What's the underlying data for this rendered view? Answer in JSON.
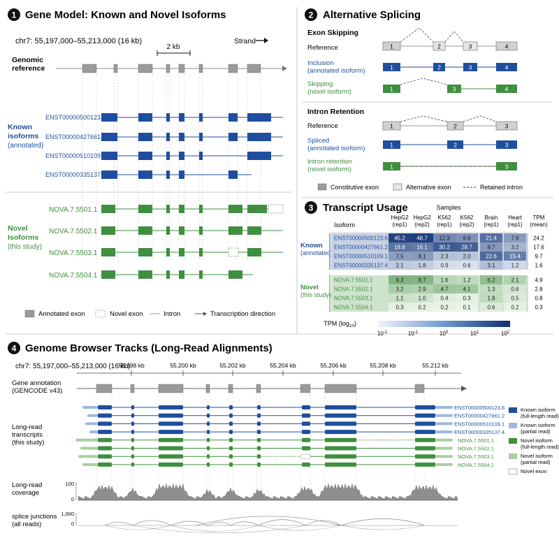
{
  "panel1": {
    "number": "1",
    "title": "Gene Model: Known and Novel Isoforms",
    "coords": "chr7: 55,197,000–55,213,000 (16 kb)",
    "strand_label": "Strand",
    "scale_label": "2 kb",
    "genomic_ref_line1": "Genomic",
    "genomic_ref_line2": "reference",
    "known_group": [
      "Known",
      "isoforms",
      "(annotated)"
    ],
    "novel_group": [
      "Novel",
      "Isoforms",
      "(this study)"
    ],
    "known_isoforms": [
      "ENST00000500123.6",
      "ENST00000427661.2",
      "ENST00000510109.1",
      "ENST00000335137.4"
    ],
    "novel_isoforms": [
      "NOVA.7.5501.1",
      "NOVA.7.5502.1",
      "NOVA.7.5503.1",
      "NOVA.7.5504.1"
    ],
    "legend": {
      "annotated_exon": "Annotated exon",
      "novel_exon": "Novel exon",
      "intron": "Intron",
      "direction": "Transcription direction"
    }
  },
  "panel2": {
    "number": "2",
    "title": "Alternative Splicing",
    "exon_skipping_heading": "Exon Skipping",
    "intron_retention_heading": "Intron Retention",
    "reference": "Reference",
    "inclusion_line1": "Inclusion",
    "inclusion_line2": "(annotated isoform)",
    "skipping_line1": "Skipping",
    "skipping_line2": "(novel isoform)",
    "spliced_line1": "Spliced",
    "spliced_line2": "(annotated isoform)",
    "retention_line1": "Intron retention",
    "retention_line2": "(novel isoform)",
    "exon_numbers_skip": [
      "1",
      "2",
      "3",
      "4"
    ],
    "exon_numbers_ret": [
      "1",
      "2",
      "3"
    ],
    "legend": {
      "constitutive": "Constitutive exon",
      "alternative": "Alternative exon",
      "retained": "Retained intron"
    }
  },
  "panel3": {
    "number": "3",
    "title": "Transcript Usage",
    "samples_label": "Samples",
    "isoform_header": "Isoform",
    "columns": [
      [
        "HepG2",
        "(rep1)"
      ],
      [
        "HepG2",
        "(rep2)"
      ],
      [
        "K562",
        "(rep1)"
      ],
      [
        "K562",
        "(rep2)"
      ],
      [
        "Brain",
        "(rep1)"
      ],
      [
        "Heart",
        "(rep1)"
      ],
      [
        "TPM",
        "(mean)"
      ]
    ],
    "known_label": [
      "Known",
      "(annotated)"
    ],
    "novel_label": [
      "Novel",
      "(this study)"
    ],
    "known_rows": [
      {
        "name": "ENST00000500123.6",
        "values": [
          "45.2",
          "48.7",
          "12.3",
          "9.8",
          "21.4",
          "7.6"
        ],
        "mean": "24.2",
        "levels": [
          0.9,
          0.92,
          0.55,
          0.5,
          0.68,
          0.45
        ]
      },
      {
        "name": "ENST00000427661.2",
        "values": [
          "18.6",
          "16.1",
          "30.2",
          "28.7",
          "8.7",
          "3.2"
        ],
        "mean": "17.6",
        "levels": [
          0.65,
          0.62,
          0.78,
          0.76,
          0.47,
          0.32
        ]
      },
      {
        "name": "ENST00000510109.1",
        "values": [
          "7.5",
          "8.1",
          "2.3",
          "2.0",
          "22.6",
          "15.4"
        ],
        "mean": "9.7",
        "levels": [
          0.44,
          0.46,
          0.26,
          0.24,
          0.7,
          0.6
        ]
      },
      {
        "name": "ENST00000335137.4",
        "values": [
          "2.1",
          "1.8",
          "0.9",
          "0.6",
          "3.1",
          "1.2"
        ],
        "mean": "1.6",
        "levels": [
          0.22,
          0.2,
          0.12,
          0.1,
          0.28,
          0.14
        ]
      }
    ],
    "novel_rows": [
      {
        "name": "NOVA.7.5501.1",
        "values": [
          "9.3",
          "8.7",
          "1.6",
          "1.2",
          "6.2",
          "2.1"
        ],
        "mean": "4.9",
        "levels": [
          0.62,
          0.6,
          0.3,
          0.26,
          0.52,
          0.34
        ]
      },
      {
        "name": "NOVA.7.5502.1",
        "values": [
          "3.2",
          "2.9",
          "4.7",
          "4.1",
          "1.3",
          "0.6"
        ],
        "mean": "2.8",
        "levels": [
          0.38,
          0.36,
          0.46,
          0.43,
          0.24,
          0.14
        ]
      },
      {
        "name": "NOVA.7.5503.1",
        "values": [
          "1.1",
          "1.0",
          "0.4",
          "0.3",
          "1.8",
          "0.5"
        ],
        "mean": "0.8",
        "levels": [
          0.2,
          0.18,
          0.08,
          0.06,
          0.26,
          0.1
        ]
      },
      {
        "name": "NOVA.7.5504.1",
        "values": [
          "0.3",
          "0.2",
          "0.2",
          "0.1",
          "0.6",
          "0.2"
        ],
        "mean": "0.3",
        "levels": [
          0.06,
          0.04,
          0.04,
          0.02,
          0.1,
          0.04
        ]
      }
    ],
    "colorbar_title": "TPM (log",
    "colorbar_title_sub": "10",
    "colorbar_title_end": ")",
    "colorbar_ticks": [
      "10",
      "10",
      "10",
      "10",
      "10"
    ],
    "colorbar_exps": [
      "-2",
      "-1",
      "0",
      "1",
      "2"
    ],
    "colors": {
      "known": "#1f4e9e",
      "novel": "#3f8f3f"
    }
  },
  "panel4": {
    "number": "4",
    "title": "Genome Browser Tracks (Long-Read Alignments)",
    "coords": "chr7: 55,197,000–55,213,000 (16 kb)",
    "ruler_labels": [
      "55,198 kb",
      "55,200 kb",
      "55,202 kb",
      "55,204 kb",
      "55,206 kb",
      "55,208 kb",
      "55,212 kb"
    ],
    "gene_annotation": [
      "Gene annotation",
      "(GENCODE v43)"
    ],
    "long_read": [
      "Long-read",
      "transcripts",
      "(this study)"
    ],
    "coverage": [
      "Long-read",
      "coverage"
    ],
    "coverage_ticks": [
      "100",
      "0"
    ],
    "junctions": [
      "splice junctions",
      "(all reads)"
    ],
    "junction_ticks": [
      "1,000",
      "0"
    ],
    "track_names": [
      "ENST00000500123.6",
      "ENST00000427661.2",
      "ENST00000510109.1",
      "ENST00000335137.4",
      "NOVA.7.5501.1",
      "NOVA.7.5502.1",
      "NOVA.7.5503.1",
      "NOVA.7.5504.1"
    ],
    "legend": [
      [
        "Known isoform",
        "(full-length read)"
      ],
      [
        "Known isoform",
        "(partial read)"
      ],
      [
        "Novel isoform",
        "(full-length read)"
      ],
      [
        "Novel isoform",
        "(partial read)"
      ],
      [
        "Novel exon",
        ""
      ]
    ],
    "colors": {
      "known_full": "#1f4e9e",
      "known_partial": "#9db8de",
      "novel_full": "#3f8f3f",
      "novel_partial": "#a9cfa0",
      "annotation": "#9a9a9a"
    }
  }
}
